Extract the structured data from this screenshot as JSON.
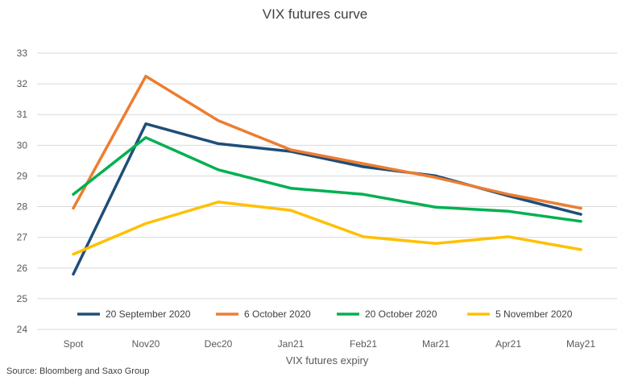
{
  "chart_data": {
    "type": "line",
    "title": "VIX futures curve",
    "xlabel": "VIX futures expiry",
    "ylabel": "",
    "categories": [
      "Spot",
      "Nov20",
      "Dec20",
      "Jan21",
      "Feb21",
      "Mar21",
      "Apr21",
      "May21"
    ],
    "ylim": [
      24,
      33
    ],
    "yticks": [
      24,
      25,
      26,
      27,
      28,
      29,
      30,
      31,
      32,
      33
    ],
    "grid": true,
    "legend_position": "bottom",
    "series": [
      {
        "name": "20 September 2020",
        "color": "#1f4e79",
        "values": [
          25.8,
          30.7,
          30.05,
          29.8,
          29.3,
          29.0,
          28.35,
          27.75
        ]
      },
      {
        "name": "6 October 2020",
        "color": "#ed7d31",
        "values": [
          27.95,
          32.25,
          30.8,
          29.85,
          29.4,
          28.95,
          28.4,
          27.95
        ]
      },
      {
        "name": "20 October 2020",
        "color": "#00b050",
        "values": [
          28.4,
          30.25,
          29.2,
          28.6,
          28.4,
          27.98,
          27.85,
          27.52
        ]
      },
      {
        "name": "5 November 2020",
        "color": "#ffc000",
        "values": [
          26.45,
          27.45,
          28.15,
          27.88,
          27.02,
          26.8,
          27.02,
          26.6
        ]
      }
    ]
  },
  "source": "Source: Bloomberg and Saxo Group"
}
